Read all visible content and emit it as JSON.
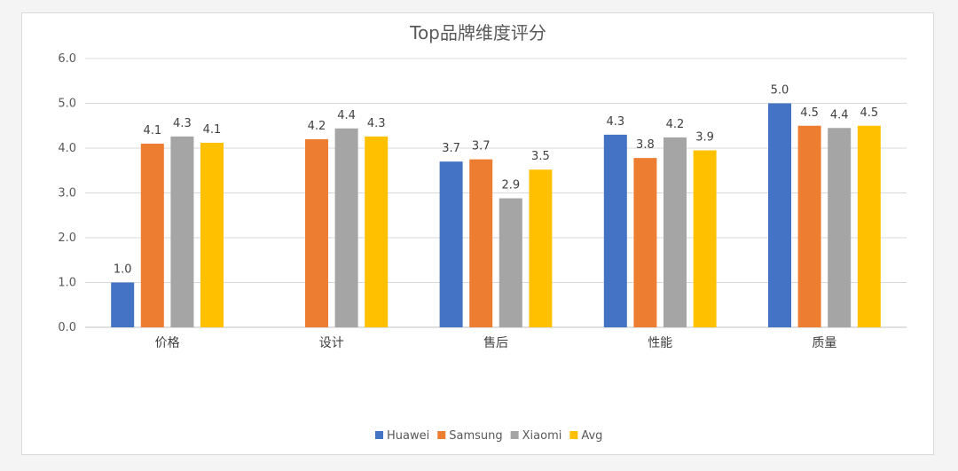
{
  "chart_data": {
    "type": "bar",
    "title": "Top品牌维度评分",
    "xlabel": "",
    "ylabel": "",
    "ylim": [
      0,
      6
    ],
    "yticks": [
      "0.0",
      "1.0",
      "2.0",
      "3.0",
      "4.0",
      "5.0",
      "6.0"
    ],
    "grid": true,
    "legend_position": "bottom",
    "categories": [
      "价格",
      "设计",
      "售后",
      "性能",
      "质量"
    ],
    "series": [
      {
        "name": "Huawei",
        "color": "#4472C4",
        "values": [
          1.0,
          null,
          3.7,
          4.3,
          5.0
        ],
        "labels": [
          "1.0",
          "",
          "3.7",
          "4.3",
          "5.0"
        ]
      },
      {
        "name": "Samsung",
        "color": "#ED7D31",
        "values": [
          4.1,
          4.2,
          3.75,
          3.78,
          4.5
        ],
        "labels": [
          "4.1",
          "4.2",
          "3.7",
          "3.8",
          "4.5"
        ]
      },
      {
        "name": "Xiaomi",
        "color": "#A5A5A5",
        "values": [
          4.26,
          4.44,
          2.88,
          4.24,
          4.45
        ],
        "labels": [
          "4.3",
          "4.4",
          "2.9",
          "4.2",
          "4.4"
        ]
      },
      {
        "name": "Avg",
        "color": "#FFC000",
        "values": [
          4.12,
          4.26,
          3.52,
          3.95,
          4.5
        ],
        "labels": [
          "4.1",
          "4.3",
          "3.5",
          "3.9",
          "4.5"
        ]
      }
    ]
  }
}
